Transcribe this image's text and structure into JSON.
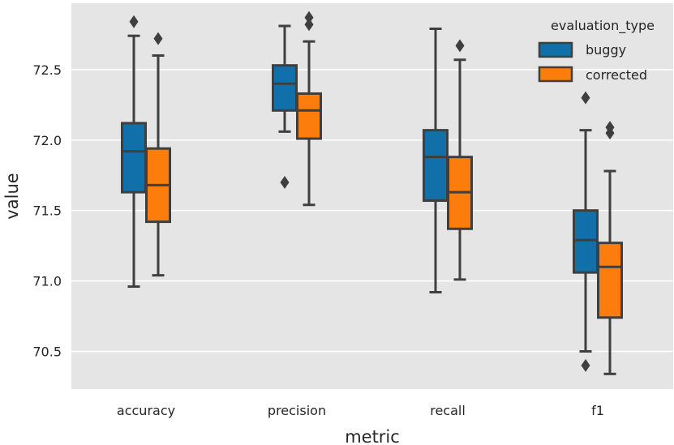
{
  "chart_data": {
    "type": "box",
    "title": "",
    "xlabel": "metric",
    "ylabel": "value",
    "ylim": [
      70.25,
      72.97
    ],
    "yticks": [
      70.5,
      71.0,
      71.5,
      72.0,
      72.5
    ],
    "ytick_labels": [
      "70.5",
      "71.0",
      "71.5",
      "72.0",
      "72.5"
    ],
    "categories": [
      "accuracy",
      "precision",
      "recall",
      "f1"
    ],
    "grid": true,
    "legend": {
      "title": "evaluation_type",
      "position": "top-right"
    },
    "series": [
      {
        "name": "buggy",
        "color": "#1170aa",
        "boxes": [
          {
            "whisker_low": 70.96,
            "q1": 71.63,
            "median": 71.92,
            "q3": 72.12,
            "whisker_high": 72.74,
            "outliers": [
              72.84
            ]
          },
          {
            "whisker_low": 72.06,
            "q1": 72.21,
            "median": 72.4,
            "q3": 72.53,
            "whisker_high": 72.81,
            "outliers": [
              71.7
            ]
          },
          {
            "whisker_low": 70.92,
            "q1": 71.57,
            "median": 71.88,
            "q3": 72.07,
            "whisker_high": 72.79,
            "outliers": []
          },
          {
            "whisker_low": 70.5,
            "q1": 71.06,
            "median": 71.29,
            "q3": 71.5,
            "whisker_high": 72.07,
            "outliers": [
              72.3,
              70.4
            ]
          }
        ]
      },
      {
        "name": "corrected",
        "color": "#fc7d0b",
        "boxes": [
          {
            "whisker_low": 71.04,
            "q1": 71.42,
            "median": 71.68,
            "q3": 71.94,
            "whisker_high": 72.6,
            "outliers": [
              72.72
            ]
          },
          {
            "whisker_low": 71.54,
            "q1": 72.01,
            "median": 72.21,
            "q3": 72.33,
            "whisker_high": 72.7,
            "outliers": [
              72.82,
              72.87
            ]
          },
          {
            "whisker_low": 71.01,
            "q1": 71.37,
            "median": 71.63,
            "q3": 71.88,
            "whisker_high": 72.57,
            "outliers": [
              72.67
            ]
          },
          {
            "whisker_low": 70.34,
            "q1": 70.74,
            "median": 71.1,
            "q3": 71.27,
            "whisker_high": 71.78,
            "outliers": [
              72.05,
              72.09
            ]
          }
        ]
      }
    ]
  }
}
